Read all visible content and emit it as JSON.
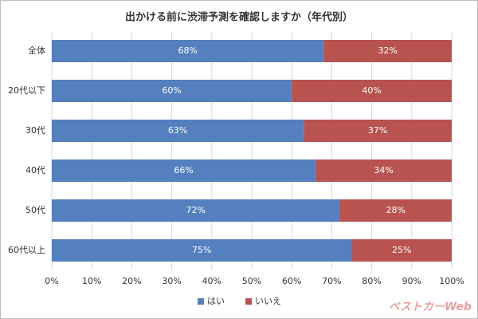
{
  "chart_data": {
    "type": "stacked-barh",
    "title": "出かける前に渋滞予測を確認しますか（年代別）",
    "categories": [
      "全体",
      "20代以下",
      "30代",
      "40代",
      "50代",
      "60代以上"
    ],
    "series": [
      {
        "name": "はい",
        "color": "#5480bf",
        "values": [
          68,
          60,
          63,
          66,
          72,
          75
        ],
        "value_labels": [
          "68%",
          "60%",
          "63%",
          "66%",
          "72%",
          "75%"
        ]
      },
      {
        "name": "いいえ",
        "color": "#b9534f",
        "values": [
          32,
          40,
          37,
          34,
          28,
          25
        ],
        "value_labels": [
          "32%",
          "40%",
          "37%",
          "34%",
          "28%",
          "25%"
        ]
      }
    ],
    "xlim": [
      0,
      100
    ],
    "xticks": [
      {
        "value": 0,
        "label": "0%"
      },
      {
        "value": 10,
        "label": "10%"
      },
      {
        "value": 20,
        "label": "20%"
      },
      {
        "value": 30,
        "label": "30%"
      },
      {
        "value": 40,
        "label": "40%"
      },
      {
        "value": 50,
        "label": "50%"
      },
      {
        "value": 60,
        "label": "60%"
      },
      {
        "value": 70,
        "label": "70%"
      },
      {
        "value": 80,
        "label": "80%"
      },
      {
        "value": 90,
        "label": "90%"
      },
      {
        "value": 100,
        "label": "100%"
      }
    ],
    "grid": true,
    "legend": "bottom",
    "watermark": "ベストカーWeb"
  }
}
